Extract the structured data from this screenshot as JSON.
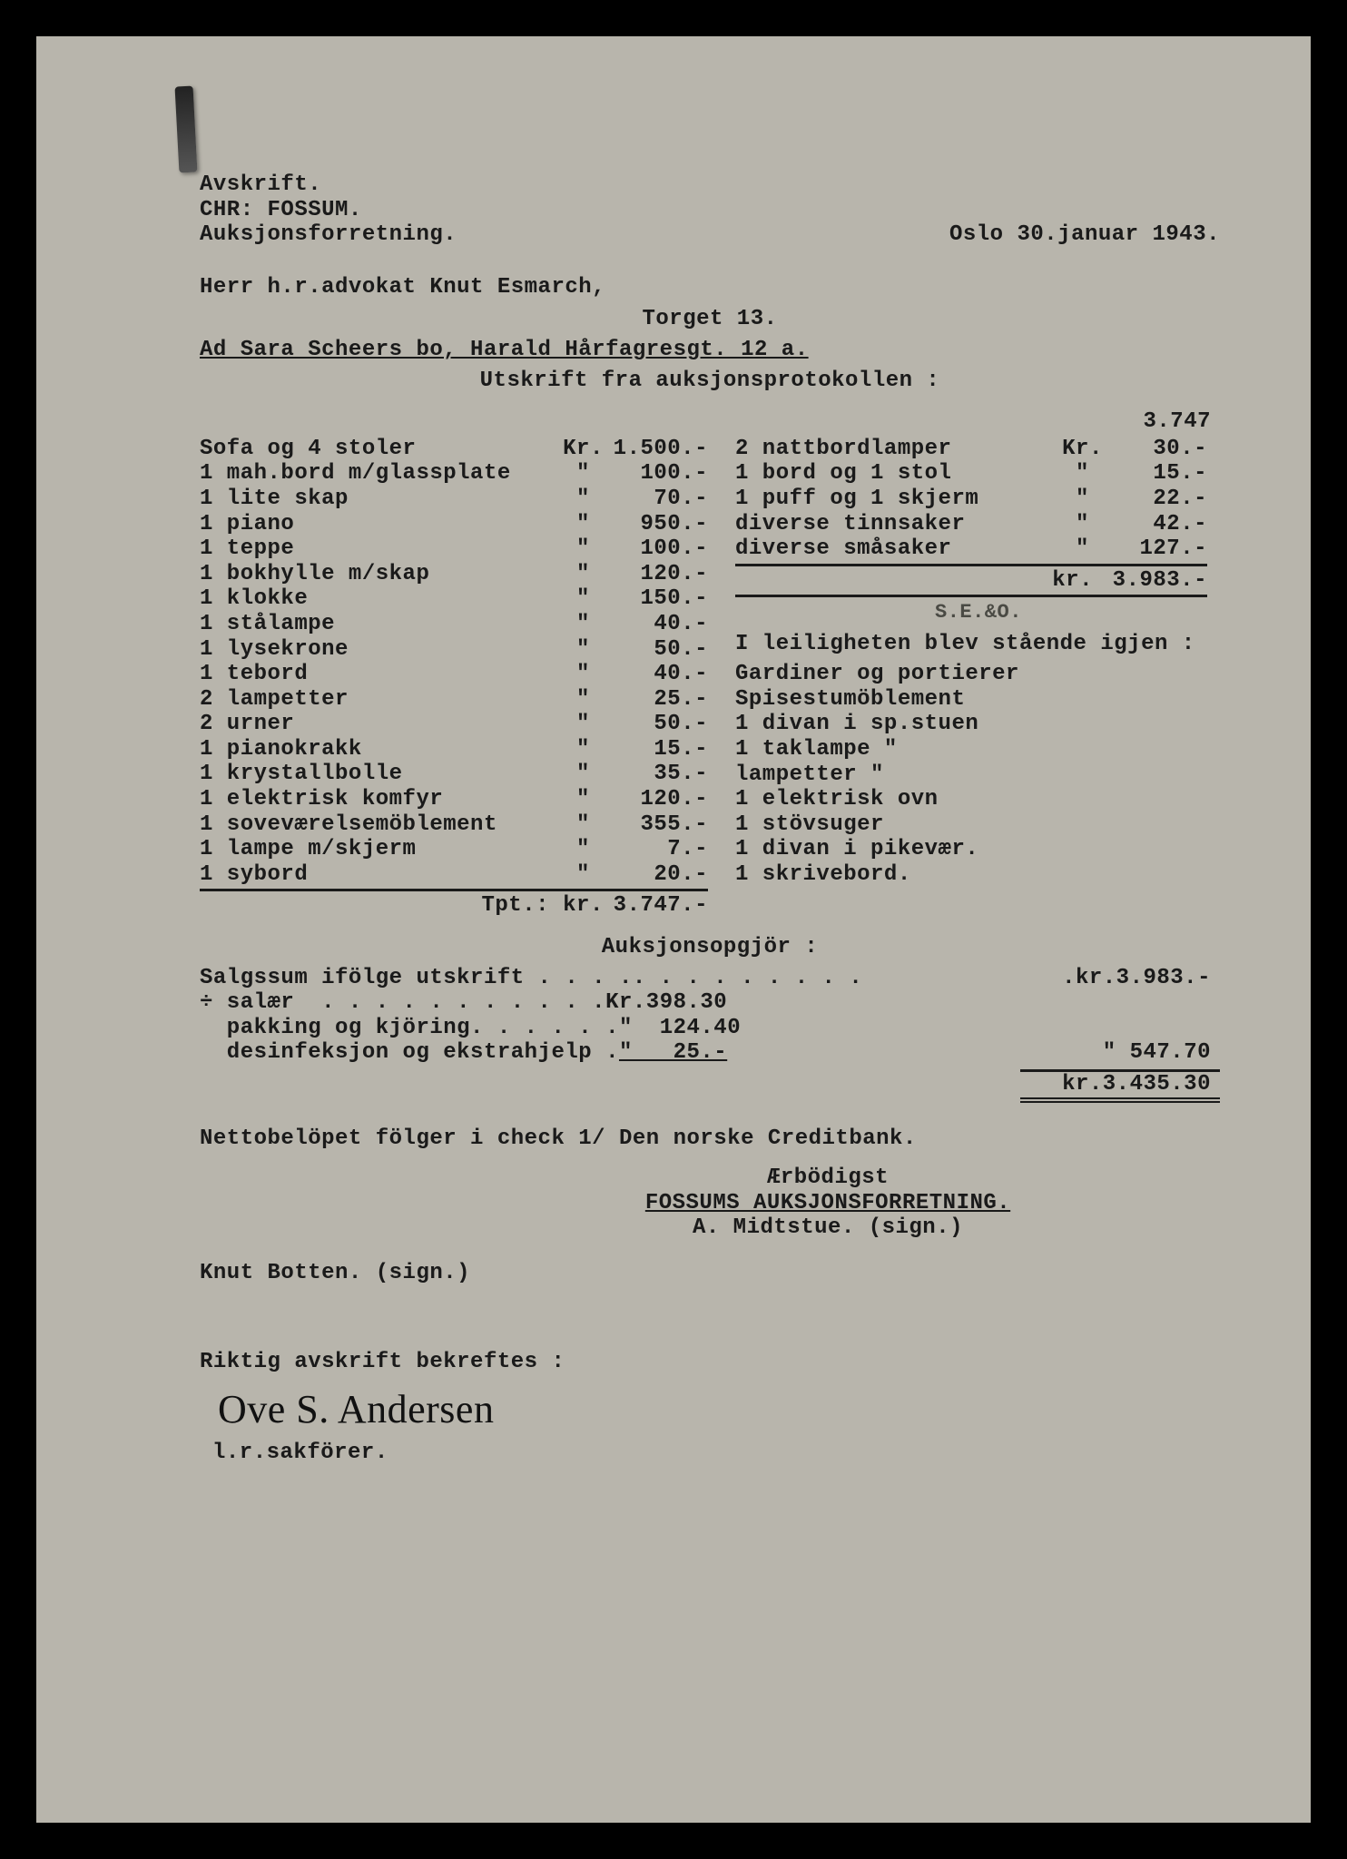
{
  "header": {
    "avskrift": "Avskrift.",
    "firm1": "CHR: FOSSUM.",
    "firm2": "Auksjonsforretning.",
    "date": "Oslo 30.januar 1943."
  },
  "recipient": {
    "line1": "Herr h.r.advokat Knut Esmarch,",
    "line2": "Torget 13.",
    "subject": "Ad Sara Scheers bo, Harald Hårfagresgt. 12 a.",
    "subhead": "Utskrift fra auksjonsprotokollen :"
  },
  "carry_forward": "3.747",
  "left_items": [
    {
      "desc": "Sofa og 4 stoler",
      "cur": "Kr.",
      "amt": "1.500.-"
    },
    {
      "desc": "1 mah.bord m/glassplate",
      "cur": "\"",
      "amt": "100.-"
    },
    {
      "desc": "1 lite skap",
      "cur": "\"",
      "amt": "70.-"
    },
    {
      "desc": "1 piano",
      "cur": "\"",
      "amt": "950.-"
    },
    {
      "desc": "1 teppe",
      "cur": "\"",
      "amt": "100.-"
    },
    {
      "desc": "1 bokhylle m/skap",
      "cur": "\"",
      "amt": "120.-"
    },
    {
      "desc": "1 klokke",
      "cur": "\"",
      "amt": "150.-"
    },
    {
      "desc": "1 stålampe",
      "cur": "\"",
      "amt": "40.-"
    },
    {
      "desc": "1 lysekrone",
      "cur": "\"",
      "amt": "50.-"
    },
    {
      "desc": "1 tebord",
      "cur": "\"",
      "amt": "40.-"
    },
    {
      "desc": "2 lampetter",
      "cur": "\"",
      "amt": "25.-"
    },
    {
      "desc": "2 urner",
      "cur": "\"",
      "amt": "50.-"
    },
    {
      "desc": "1 pianokrakk",
      "cur": "\"",
      "amt": "15.-"
    },
    {
      "desc": "1 krystallbolle",
      "cur": "\"",
      "amt": "35.-"
    },
    {
      "desc": "1 elektrisk komfyr",
      "cur": "\"",
      "amt": "120.-"
    },
    {
      "desc": "1 soveværelsemöblement",
      "cur": "\"",
      "amt": "355.-"
    },
    {
      "desc": "1 lampe m/skjerm",
      "cur": "\"",
      "amt": "7.-"
    },
    {
      "desc": "1 sybord",
      "cur": "\"",
      "amt": "20.-"
    }
  ],
  "left_total": {
    "label": "Tpt.:",
    "cur": "kr.",
    "amt": "3.747.-"
  },
  "right_items": [
    {
      "desc": "2 nattbordlamper",
      "cur": "Kr.",
      "amt": "30.-"
    },
    {
      "desc": "1 bord og 1 stol",
      "cur": "\"",
      "amt": "15.-"
    },
    {
      "desc": "1 puff og 1 skjerm",
      "cur": "\"",
      "amt": "22.-"
    },
    {
      "desc": "diverse tinnsaker",
      "cur": "\"",
      "amt": "42.-"
    },
    {
      "desc": "diverse småsaker",
      "cur": "\"",
      "amt": "127.-"
    }
  ],
  "right_subtotal": {
    "cur": "kr.",
    "amt": "3.983.-"
  },
  "annotation": "S.E.&O.",
  "remaining": {
    "head": "I leiligheten blev stående igjen :",
    "items": [
      "Gardiner og portierer",
      "Spisestumöblement",
      "1 divan i sp.stuen",
      "1 taklampe      \"",
      "lampetter       \"",
      "1 elektrisk ovn",
      "1 stövsuger",
      "1 divan i pikevær.",
      "1 skrivebord."
    ]
  },
  "settlement": {
    "head": "Auksjonsopgjör :",
    "rows": [
      {
        "desc": "Salgssum ifölge utskrift . . . .",
        "mid": ". . . . . . . . .",
        "far": ".kr.3.983.-"
      },
      {
        "desc": "÷ salær  . . . . . . . . . . .",
        "mid": "Kr.398.30",
        "far": ""
      },
      {
        "desc": "  pakking og kjöring. . . . . .",
        "mid": "\"  124.40",
        "far": ""
      },
      {
        "desc": "  desinfeksjon og ekstrahjelp .",
        "mid": "\"   25.-",
        "far": "\"   547.70",
        "mid_underlined": true
      }
    ],
    "grand": "kr.3.435.30"
  },
  "footer": {
    "netto": "Nettobelöpet fölger i check 1/ Den norske Creditbank.",
    "erb": "Ærbödigst",
    "firm": "FOSSUMS AUKSJONSFORRETNING.",
    "signer": "A. Midtstue. (sign.)",
    "left_sign": "Knut Botten. (sign.)",
    "bekreft": "Riktig avskrift bekreftes :",
    "hand": "Ove S. Andersen",
    "role": "l.r.sakförer."
  },
  "colors": {
    "paper": "#b8b5ac",
    "ink": "#1a1a1a",
    "frame": "#000000"
  }
}
